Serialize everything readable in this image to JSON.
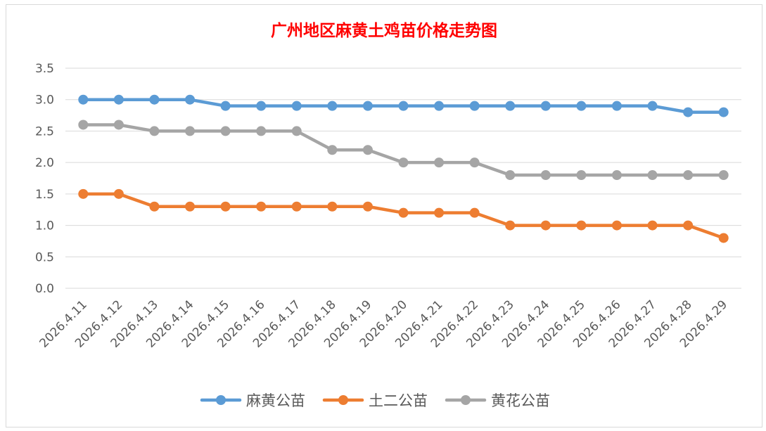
{
  "chart_data": {
    "type": "line",
    "title": "广州地区麻黄土鸡苗价格走势图",
    "xlabel": "",
    "ylabel": "",
    "ylim": [
      0,
      3.5
    ],
    "yticks": [
      "0.0",
      "0.5",
      "1.0",
      "1.5",
      "2.0",
      "2.5",
      "3.0",
      "3.5"
    ],
    "grid": true,
    "legend": "bottom",
    "categories": [
      "2026.4.11",
      "2026.4.12",
      "2026.4.13",
      "2026.4.14",
      "2026.4.15",
      "2026.4.16",
      "2026.4.17",
      "2026.4.18",
      "2026.4.19",
      "2026.4.20",
      "2026.4.21",
      "2026.4.22",
      "2026.4.23",
      "2026.4.24",
      "2026.4.25",
      "2026.4.26",
      "2026.4.27",
      "2026.4.28",
      "2026.4.29"
    ],
    "series": [
      {
        "name": "麻黄公苗",
        "color": "#5b9bd5",
        "values": [
          3.0,
          3.0,
          3.0,
          3.0,
          2.9,
          2.9,
          2.9,
          2.9,
          2.9,
          2.9,
          2.9,
          2.9,
          2.9,
          2.9,
          2.9,
          2.9,
          2.9,
          2.8,
          2.8
        ]
      },
      {
        "name": "土二公苗",
        "color": "#ed7d31",
        "values": [
          1.5,
          1.5,
          1.3,
          1.3,
          1.3,
          1.3,
          1.3,
          1.3,
          1.3,
          1.2,
          1.2,
          1.2,
          1.0,
          1.0,
          1.0,
          1.0,
          1.0,
          1.0,
          0.8
        ]
      },
      {
        "name": "黄花公苗",
        "color": "#a5a5a5",
        "values": [
          2.6,
          2.6,
          2.5,
          2.5,
          2.5,
          2.5,
          2.5,
          2.2,
          2.2,
          2.0,
          2.0,
          2.0,
          1.8,
          1.8,
          1.8,
          1.8,
          1.8,
          1.8,
          1.8
        ]
      }
    ],
    "title_color": "#ff0000"
  }
}
